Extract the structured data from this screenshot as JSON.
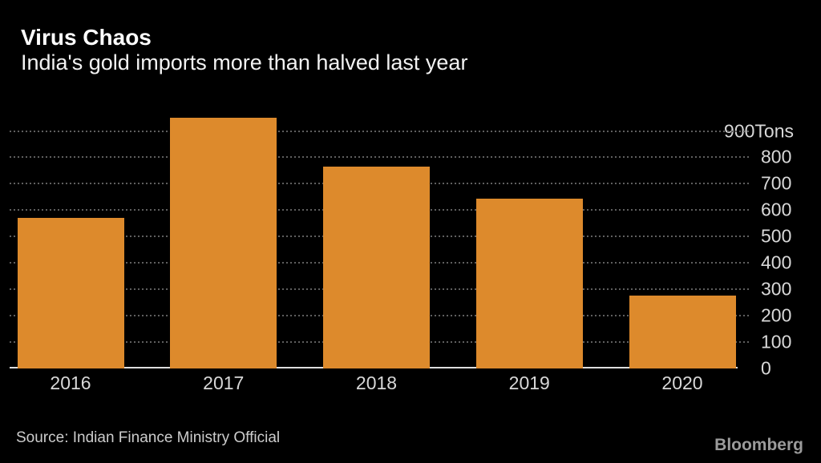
{
  "page": {
    "background_color": "#000000"
  },
  "header": {
    "title": "Virus Chaos",
    "subtitle": "India's gold imports more than halved last year"
  },
  "footer": {
    "source": "Source: Indian Finance Ministry Official",
    "brand": "Bloomberg"
  },
  "chart_data": {
    "type": "bar",
    "title": "Virus Chaos",
    "subtitle": "India's gold imports more than halved last year",
    "categories": [
      "2016",
      "2017",
      "2018",
      "2019",
      "2020"
    ],
    "values": [
      570,
      950,
      765,
      645,
      275
    ],
    "unit": "Tons",
    "xlabel": "",
    "ylabel": "Tons",
    "ylim": [
      0,
      970
    ],
    "yticks": [
      0,
      100,
      200,
      300,
      400,
      500,
      600,
      700,
      800,
      900
    ],
    "ytick_labels": [
      "0",
      "100",
      "200",
      "300",
      "400",
      "500",
      "600",
      "700",
      "800",
      "900Tons"
    ],
    "grid": "horizontal-dotted",
    "legend": "none",
    "source": "Indian Finance Ministry Official",
    "colors": {
      "bar": "#DD8A2C",
      "gridline": "#5F5F5F",
      "axis_line": "#DEDEDE",
      "tick_label": "#D8D8D8",
      "title": "#FFFFFF",
      "background": "#000000"
    }
  }
}
